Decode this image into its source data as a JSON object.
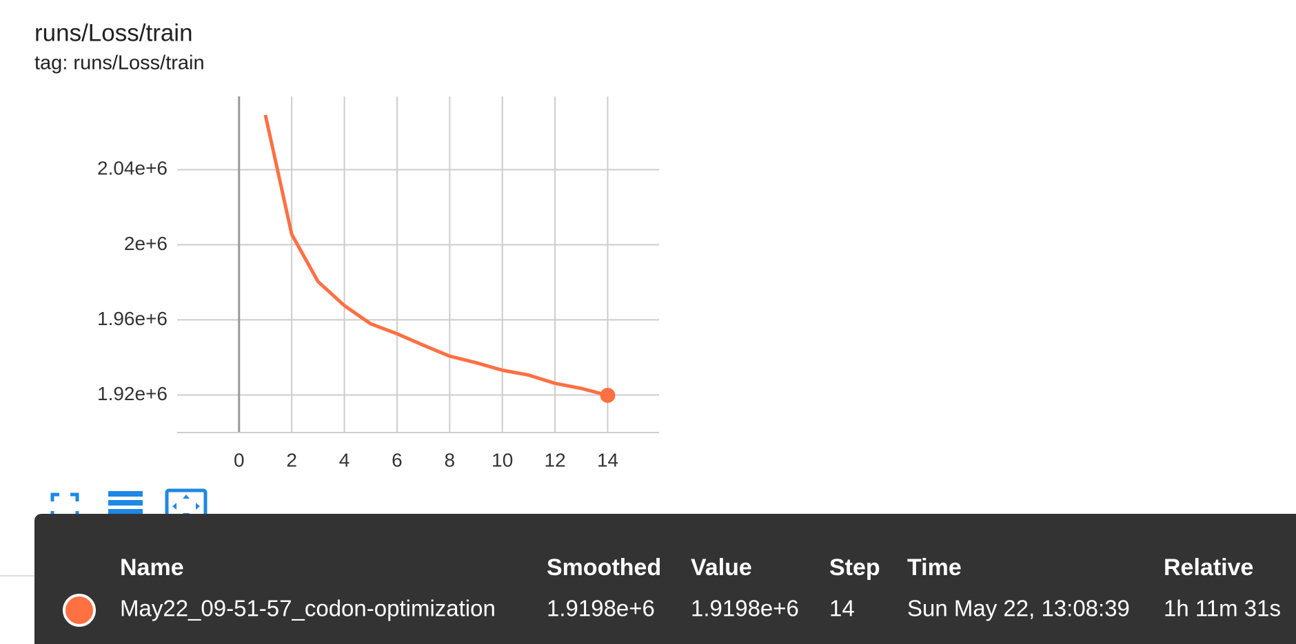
{
  "chart_data": {
    "type": "line",
    "title": "runs/Loss/train",
    "subtitle": "tag: runs/Loss/train",
    "x": [
      1,
      2,
      3,
      4,
      5,
      6,
      7,
      8,
      9,
      10,
      11,
      12,
      13,
      14
    ],
    "series": [
      {
        "name": "May22_09-51-57_codon-optimization",
        "color": "#ff7043",
        "values": [
          2069100,
          2005600,
          1980400,
          1967600,
          1957900,
          1952600,
          1946500,
          1940700,
          1937200,
          1933200,
          1930600,
          1926200,
          1923500,
          1919800
        ]
      }
    ],
    "xlim": [
      -2.35,
      15.95
    ],
    "xticks": [
      0,
      2,
      4,
      6,
      8,
      10,
      12,
      14
    ],
    "ylim": [
      1900000,
      2079000
    ],
    "yticks": [
      {
        "value": 1920000,
        "label": "1.92e+6"
      },
      {
        "value": 1960000,
        "label": "1.96e+6"
      },
      {
        "value": 2000000,
        "label": "2e+6"
      },
      {
        "value": 2040000,
        "label": "2.04e+6"
      }
    ],
    "grid": true
  },
  "tooltip": {
    "headers": [
      "Name",
      "Smoothed",
      "Value",
      "Step",
      "Time",
      "Relative"
    ],
    "row": [
      "1.9198e+6",
      "1.9198e+6",
      "14",
      "Sun May 22, 13:08:39",
      "1h 11m 31s"
    ]
  }
}
